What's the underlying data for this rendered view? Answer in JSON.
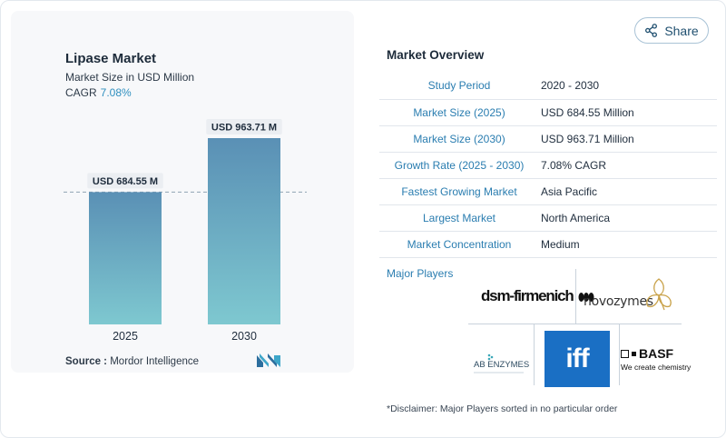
{
  "chart_data": {
    "type": "bar",
    "title": "Lipase Market",
    "subtitle": "Market Size in USD Million",
    "cagr_label": "CAGR",
    "cagr_value": "7.08%",
    "categories": [
      "2025",
      "2030"
    ],
    "values": [
      684.55,
      963.71
    ],
    "data_labels": [
      "USD 684.55 M",
      "USD 963.71 M"
    ],
    "reference_line": "dashed line at 2025 value",
    "colors": {
      "bar_top": "#5a90b5",
      "bar_bottom": "#7ec8d0",
      "reference": "#8fa3b3"
    },
    "source_label": "Source :",
    "source_value": "Mordor Intelligence"
  },
  "share_label": "Share",
  "overview": {
    "title": "Market Overview",
    "rows": [
      {
        "label": "Study Period",
        "value": "2020 - 2030"
      },
      {
        "label": "Market Size (2025)",
        "value": "USD 684.55 Million"
      },
      {
        "label": "Market Size (2030)",
        "value": "USD 963.71 Million"
      },
      {
        "label": "Growth Rate (2025 - 2030)",
        "value": "7.08% CAGR"
      },
      {
        "label": "Fastest Growing Market",
        "value": "Asia Pacific"
      },
      {
        "label": "Largest Market",
        "value": "North America"
      },
      {
        "label": "Market Concentration",
        "value": "Medium"
      }
    ]
  },
  "players": {
    "title": "Major Players",
    "logos": {
      "dsm": "dsm-firmenich",
      "novozymes": "novozymes",
      "ab_enzymes": "AB ENZYMES",
      "iff": "iff",
      "basf": "BASF",
      "basf_tag": "We create chemistry"
    }
  },
  "disclaimer": "*Disclaimer: Major Players sorted in no particular order"
}
